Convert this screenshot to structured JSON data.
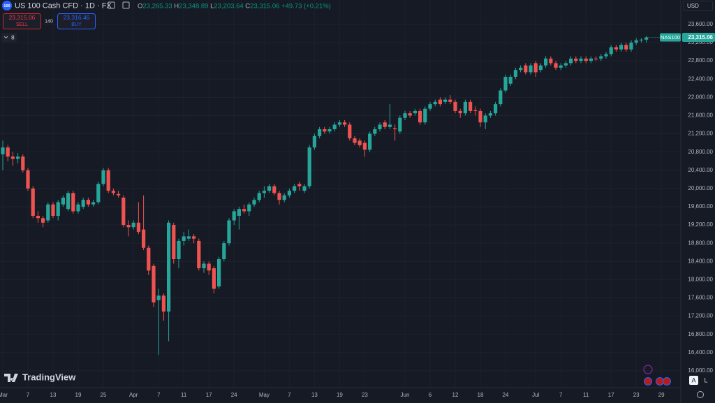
{
  "header": {
    "logo": "100",
    "symbol": "US 100 Cash CFD · 1D · FX",
    "ohlc": [
      {
        "key": "O",
        "value": "23,265.33"
      },
      {
        "key": "H",
        "value": "23,348.89"
      },
      {
        "key": "L",
        "value": "23,203.64"
      },
      {
        "key": "C",
        "value": "23,315.06"
      }
    ],
    "change": "+49.73 (+0.21%)"
  },
  "trade": {
    "sell_price": "23,315.06",
    "sell": "SELL",
    "spread": "140",
    "buy_price": "23,316.46",
    "buy": "BUY"
  },
  "indicators_count": "8",
  "currency": "USD",
  "symbol_tag": "NAS100",
  "last_price_label": "23,315.06",
  "brand": "TradingView",
  "buttons": [
    "A",
    "L"
  ],
  "chart_data": {
    "type": "candlestick",
    "up_color": "#26a69a",
    "down_color": "#ef5350",
    "grid": true,
    "ylim": [
      15631,
      24135
    ],
    "yticks": [
      {
        "value": 16000,
        "label": "16,000.00"
      },
      {
        "value": 16400,
        "label": "16,400.00"
      },
      {
        "value": 16800,
        "label": "16,800.00"
      },
      {
        "value": 17200,
        "label": "17,200.00"
      },
      {
        "value": 17600,
        "label": "17,600.00"
      },
      {
        "value": 18000,
        "label": "18,000.00"
      },
      {
        "value": 18400,
        "label": "18,400.00"
      },
      {
        "value": 18800,
        "label": "18,800.00"
      },
      {
        "value": 19200,
        "label": "19,200.00"
      },
      {
        "value": 19600,
        "label": "19,600.00"
      },
      {
        "value": 20000,
        "label": "20,000.00"
      },
      {
        "value": 20400,
        "label": "20,400.00"
      },
      {
        "value": 20800,
        "label": "20,800.00"
      },
      {
        "value": 21200,
        "label": "21,200.00"
      },
      {
        "value": 21600,
        "label": "21,600.00"
      },
      {
        "value": 22000,
        "label": "22,000.00"
      },
      {
        "value": 22400,
        "label": "22,400.00"
      },
      {
        "value": 22800,
        "label": "22,800.00"
      },
      {
        "value": 23200,
        "label": "23,200.00"
      },
      {
        "value": 23600,
        "label": "23,600.00"
      }
    ],
    "categories": [
      "Mar",
      null,
      null,
      null,
      null,
      "7",
      null,
      null,
      null,
      null,
      "13",
      null,
      null,
      null,
      null,
      "19",
      null,
      null,
      null,
      null,
      "25",
      null,
      null,
      null,
      null,
      null,
      "Apr",
      null,
      null,
      null,
      null,
      "7",
      null,
      null,
      null,
      null,
      "11",
      null,
      null,
      null,
      null,
      "17",
      null,
      null,
      null,
      null,
      "24",
      null,
      null,
      null,
      null,
      null,
      "May",
      null,
      null,
      null,
      null,
      "7",
      null,
      null,
      null,
      null,
      "13",
      null,
      null,
      null,
      null,
      "19",
      null,
      null,
      null,
      null,
      "23",
      null,
      null,
      null,
      null,
      null,
      null,
      null,
      "Jun",
      null,
      null,
      null,
      null,
      "6",
      null,
      null,
      null,
      null,
      "12",
      null,
      null,
      null,
      null,
      "18",
      null,
      null,
      null,
      null,
      "24",
      null,
      null,
      null,
      null,
      null,
      "Jul",
      null,
      null,
      null,
      null,
      "7",
      null,
      null,
      null,
      null,
      "11",
      null,
      null,
      null,
      null,
      "17",
      null,
      null,
      null,
      null,
      "23",
      null,
      null,
      null,
      null,
      "29"
    ],
    "open": [
      20750,
      20900,
      20700,
      20650,
      20700,
      20400,
      20000,
      19400,
      19350,
      19300,
      19650,
      19400,
      19650,
      19550,
      19900,
      19500,
      19600,
      19750,
      19650,
      19700,
      20100,
      20400,
      19950,
      19880,
      19800,
      19200,
      19150,
      19250,
      19100,
      18700,
      18300,
      17550,
      17650,
      17300,
      19200,
      18450,
      18850,
      18900,
      18950,
      18850,
      18250,
      18350,
      18250,
      17850,
      18450,
      18800,
      19300,
      19400,
      19550,
      19500,
      19650,
      19750,
      19900,
      19950,
      20050,
      19900,
      19750,
      19850,
      19950,
      20100,
      19950,
      20050,
      20900,
      21150,
      21300,
      21250,
      21300,
      21400,
      21450,
      21400,
      21100,
      21050,
      21000,
      20850,
      21200,
      21300,
      21450,
      21350,
      21320,
      21250,
      21550,
      21650,
      21650,
      21700,
      21450,
      21750,
      21850,
      21950,
      21900,
      21950,
      21900,
      21700,
      21650,
      21900,
      21720,
      21700,
      21450,
      21600,
      21650,
      21850,
      22150,
      22300,
      22450,
      22600,
      22700,
      22550,
      22750,
      22600,
      22700,
      22850,
      22750,
      22650,
      22700,
      22750,
      22850,
      22800,
      22850,
      22800,
      22850,
      22850,
      22900,
      22950,
      23100,
      23050,
      23150,
      23050,
      23200,
      23250,
      23265.33,
      null,
      null,
      null
    ],
    "high": [
      21050,
      20950,
      20800,
      20780,
      20750,
      20450,
      20050,
      19500,
      19400,
      19700,
      19700,
      19750,
      19850,
      19950,
      19950,
      19700,
      19800,
      19800,
      19750,
      20150,
      20450,
      20450,
      20000,
      19950,
      19850,
      19300,
      19300,
      19700,
      19850,
      18750,
      18350,
      17800,
      17700,
      19300,
      19250,
      18900,
      19050,
      19100,
      19000,
      18900,
      18400,
      18400,
      18300,
      18500,
      18850,
      19350,
      19550,
      19600,
      19650,
      19700,
      19800,
      19950,
      20050,
      20100,
      20100,
      19950,
      19900,
      20000,
      20100,
      20150,
      20100,
      20950,
      21200,
      21350,
      21350,
      21350,
      21450,
      21500,
      21500,
      21450,
      21150,
      21100,
      21050,
      21250,
      21350,
      21450,
      21500,
      21850,
      21400,
      21600,
      21700,
      21700,
      21750,
      21750,
      21800,
      21900,
      21950,
      22000,
      22000,
      22050,
      21950,
      21750,
      21950,
      21950,
      21800,
      21750,
      21650,
      21700,
      21900,
      22200,
      22500,
      22500,
      22650,
      22700,
      22750,
      22750,
      22800,
      22750,
      22900,
      22900,
      22800,
      22750,
      22800,
      22900,
      22900,
      22900,
      22900,
      22900,
      22900,
      22950,
      23000,
      23150,
      23150,
      23200,
      23200,
      23250,
      23300,
      23300,
      23348.89,
      null,
      null,
      null
    ],
    "low": [
      20400,
      20600,
      20500,
      20550,
      20350,
      19950,
      19350,
      19250,
      19150,
      19250,
      19350,
      19300,
      19600,
      19500,
      19450,
      19450,
      19550,
      19600,
      19600,
      19650,
      20050,
      19900,
      19850,
      19800,
      19150,
      18950,
      19100,
      19000,
      18650,
      18100,
      17400,
      16350,
      17100,
      16650,
      18350,
      18250,
      18750,
      18850,
      18800,
      18200,
      18150,
      18100,
      17700,
      17800,
      18400,
      18750,
      19200,
      19100,
      19450,
      19400,
      19600,
      19700,
      19800,
      19900,
      19850,
      19650,
      19700,
      19800,
      19900,
      19950,
      19900,
      20000,
      20850,
      21100,
      21200,
      21200,
      21250,
      21350,
      21350,
      21050,
      20950,
      20900,
      20700,
      20800,
      21150,
      21250,
      21300,
      21300,
      21050,
      21200,
      21500,
      21550,
      21600,
      21400,
      21400,
      21700,
      21800,
      21800,
      21850,
      21850,
      21650,
      21550,
      21600,
      21650,
      21600,
      21350,
      21300,
      21550,
      21600,
      21800,
      22100,
      22250,
      22400,
      22550,
      22500,
      22500,
      22450,
      22550,
      22650,
      22700,
      22600,
      22600,
      22650,
      22700,
      22750,
      22750,
      22750,
      22750,
      22800,
      22800,
      22850,
      22900,
      23000,
      23000,
      23000,
      23000,
      23150,
      23200,
      23203.64,
      null,
      null,
      null
    ],
    "close": [
      20900,
      20700,
      20650,
      20700,
      20400,
      20000,
      19400,
      19350,
      19250,
      19650,
      19400,
      19700,
      19800,
      19900,
      19500,
      19650,
      19750,
      19650,
      19700,
      20100,
      20400,
      19950,
      19900,
      19850,
      19200,
      19150,
      19250,
      19050,
      18700,
      18200,
      17500,
      17650,
      17300,
      19250,
      18450,
      18850,
      18950,
      18950,
      18900,
      18250,
      18350,
      18200,
      17800,
      18450,
      18800,
      19300,
      19500,
      19550,
      19500,
      19650,
      19750,
      19900,
      19950,
      20050,
      19900,
      19750,
      19850,
      19950,
      20050,
      20050,
      20050,
      20900,
      21150,
      21300,
      21250,
      21300,
      21400,
      21450,
      21400,
      21100,
      21000,
      20950,
      20850,
      21200,
      21300,
      21400,
      21350,
      21400,
      21300,
      21550,
      21650,
      21600,
      21700,
      21450,
      21750,
      21850,
      21900,
      21850,
      21950,
      21900,
      21700,
      21650,
      21900,
      21700,
      21700,
      21450,
      21600,
      21650,
      21850,
      22150,
      22450,
      22450,
      22600,
      22650,
      22550,
      22700,
      22550,
      22700,
      22850,
      22750,
      22650,
      22700,
      22750,
      22850,
      22800,
      22850,
      22800,
      22850,
      22840,
      22900,
      22950,
      23100,
      23050,
      23150,
      23050,
      23200,
      23250,
      23265.33,
      23315.06,
      null,
      null,
      null
    ]
  }
}
